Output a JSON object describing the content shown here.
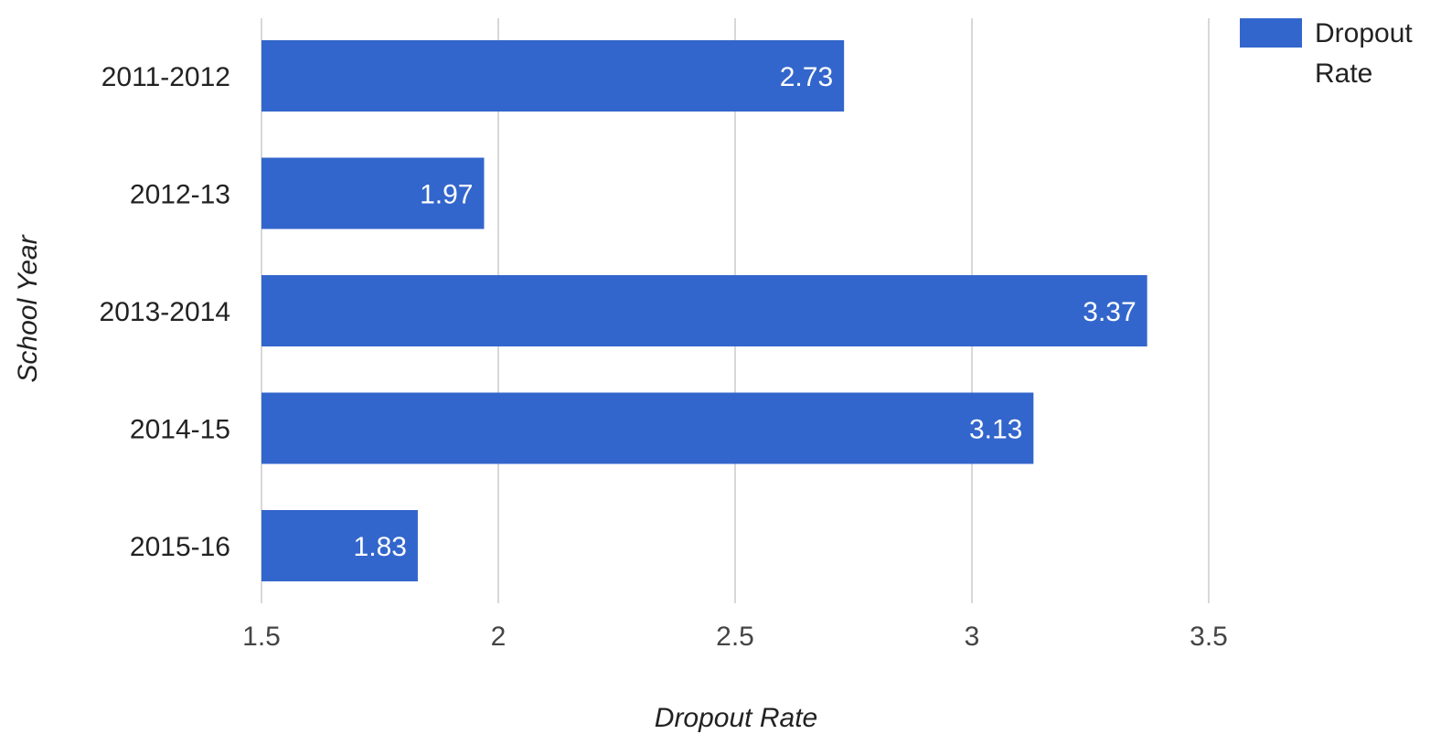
{
  "chart_data": {
    "type": "bar",
    "orientation": "horizontal",
    "categories": [
      "2011-2012",
      "2012-13",
      "2013-2014",
      "2014-15",
      "2015-16"
    ],
    "series": [
      {
        "name": "Dropout Rate",
        "values": [
          2.73,
          1.97,
          3.37,
          3.13,
          1.83
        ],
        "color": "#3366cc"
      }
    ],
    "data_labels": [
      "2.73",
      "1.97",
      "3.37",
      "3.13",
      "1.83"
    ],
    "xlabel": "Dropout Rate",
    "ylabel": "School Year",
    "xlim": [
      1.5,
      3.5
    ],
    "x_ticks": [
      "1.5",
      "2",
      "2.5",
      "3",
      "3.5"
    ],
    "grid": true,
    "legend": {
      "placement": "top-right",
      "label_lines": [
        "Dropout",
        "Rate"
      ]
    }
  }
}
